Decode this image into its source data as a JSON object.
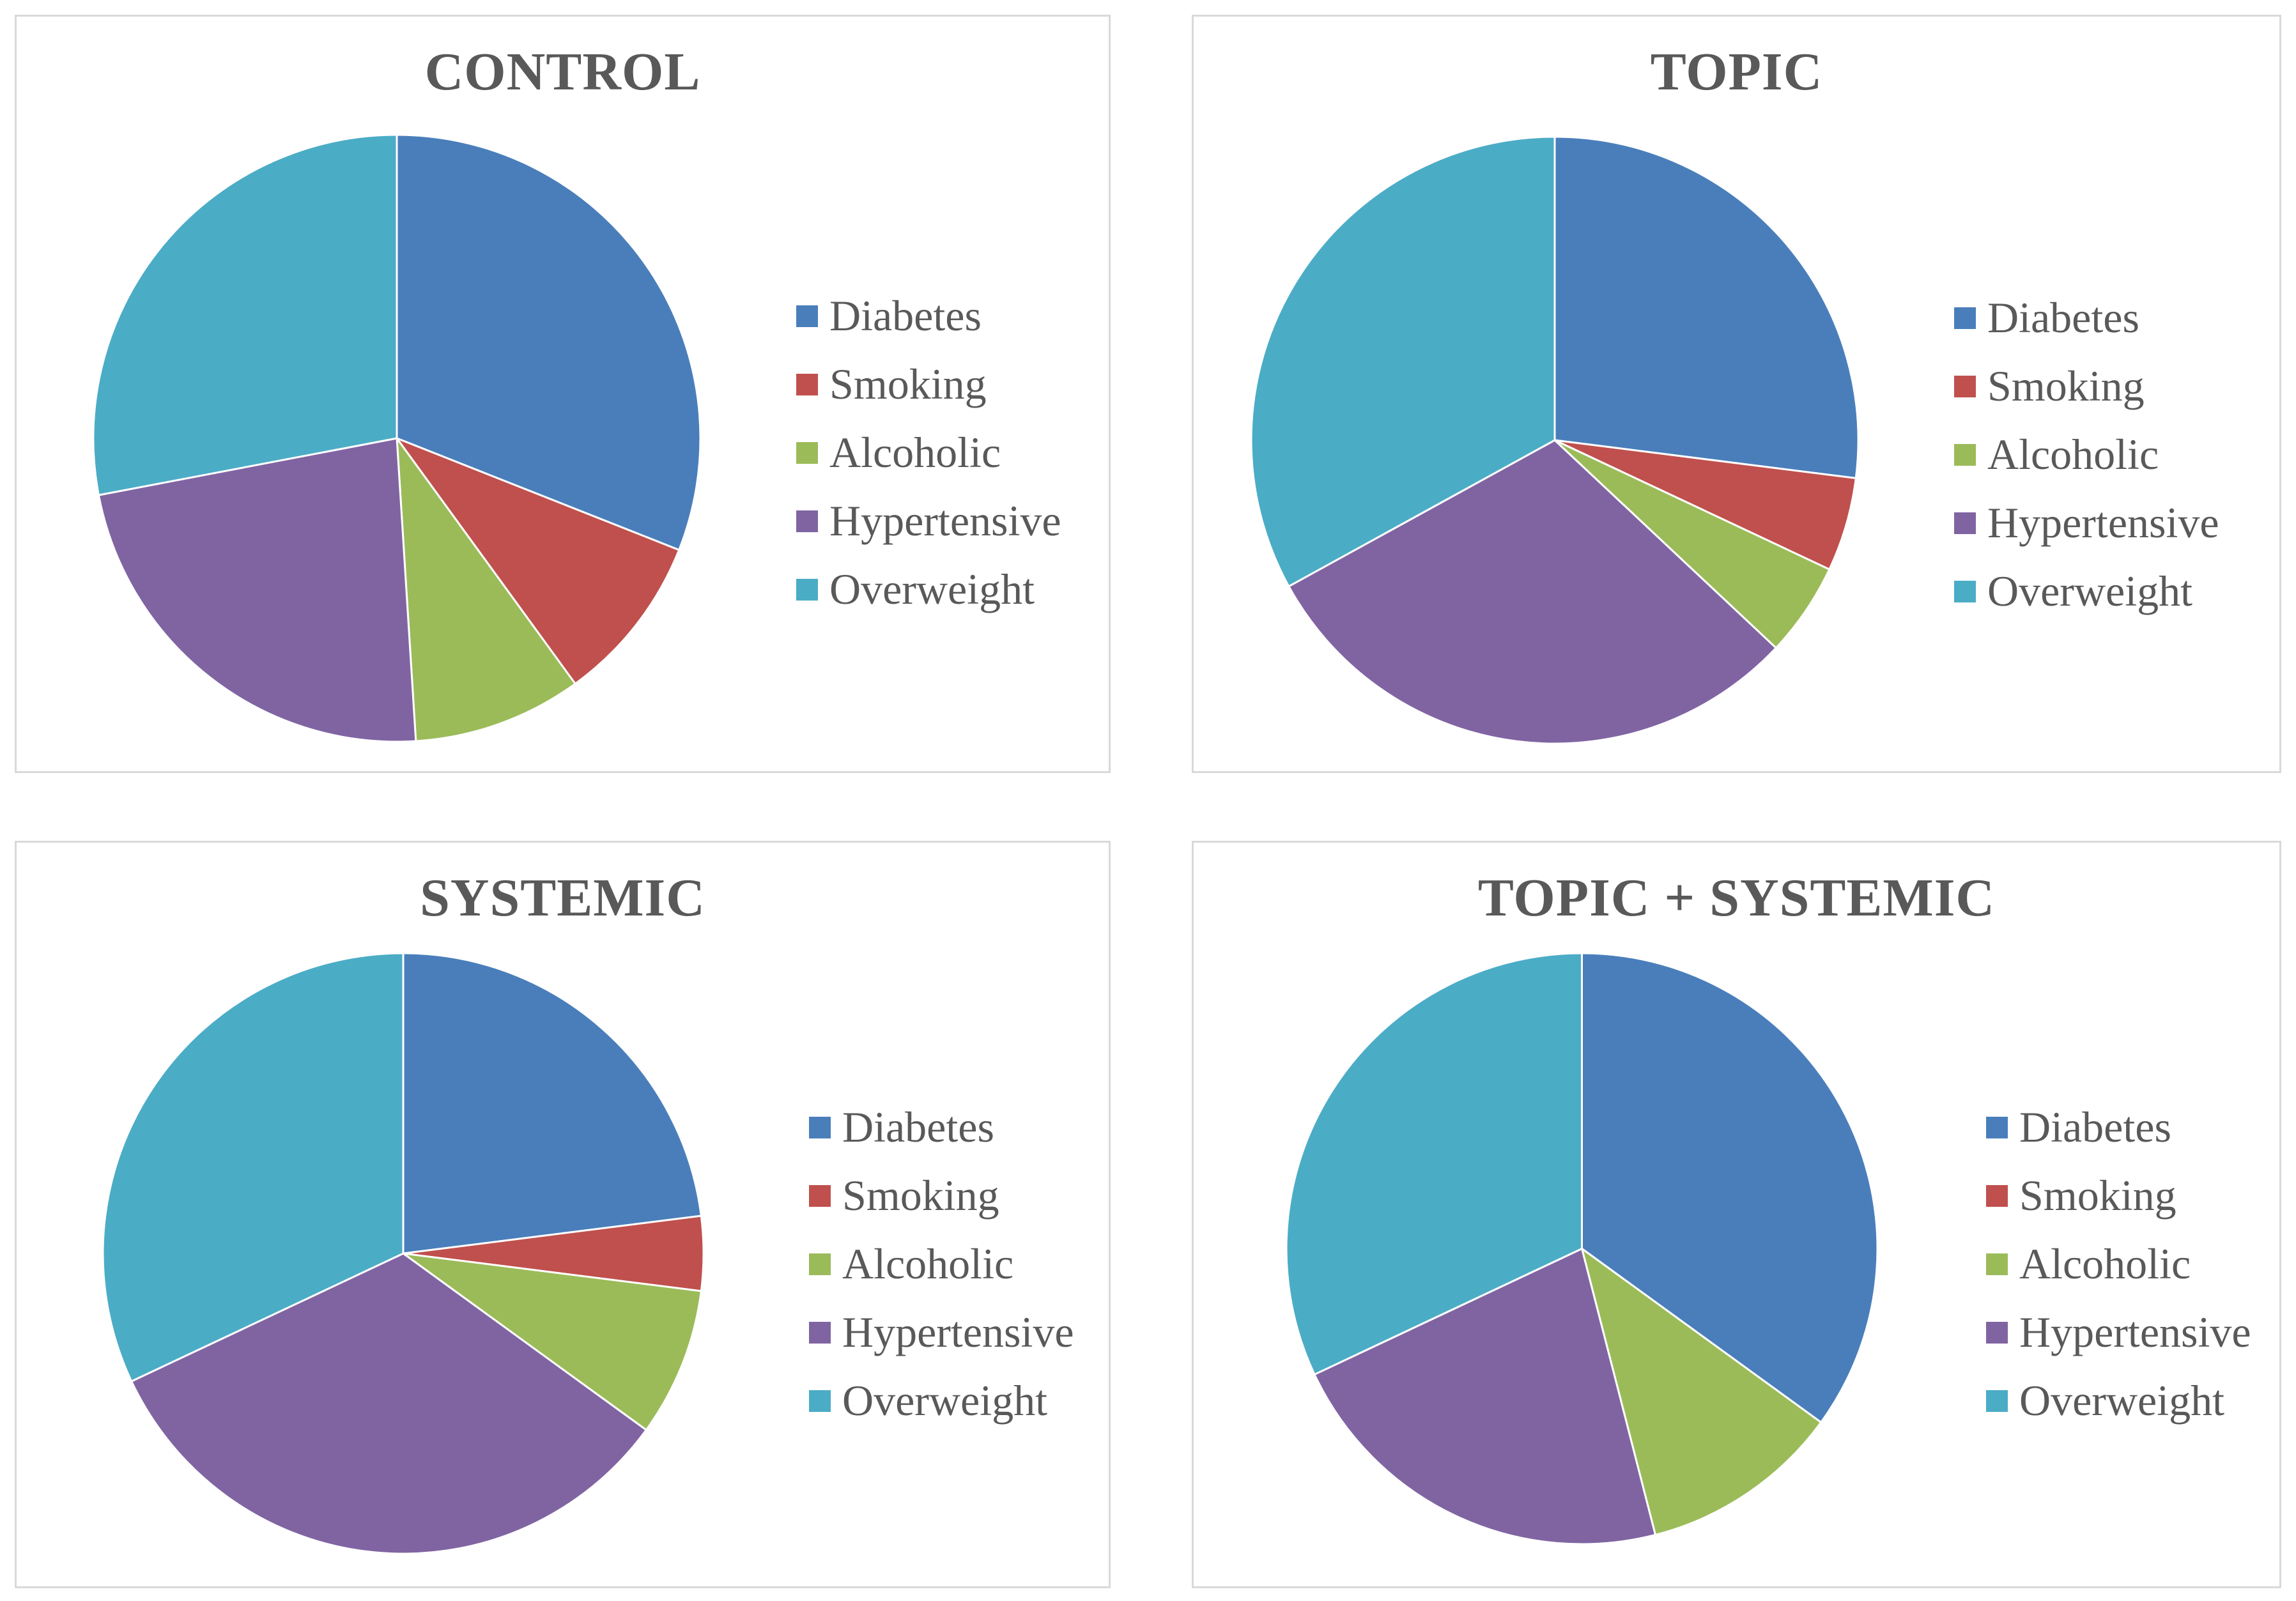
{
  "chart_data": [
    {
      "type": "pie",
      "title": "CONTROL",
      "labels": [
        "Diabetes",
        "Smoking",
        "Alcoholic",
        "Hypertensive",
        "Overweight"
      ],
      "values": [
        31,
        9,
        9,
        23,
        28
      ],
      "colors": [
        "#4a7ebb",
        "#c0504d",
        "#9bbb59",
        "#8064a2",
        "#4bacc6"
      ],
      "legend_position": "right"
    },
    {
      "type": "pie",
      "title": "TOPIC",
      "labels": [
        "Diabetes",
        "Smoking",
        "Alcoholic",
        "Hypertensive",
        "Overweight"
      ],
      "values": [
        27,
        5,
        5,
        30,
        33
      ],
      "colors": [
        "#4a7ebb",
        "#c0504d",
        "#9bbb59",
        "#8064a2",
        "#4bacc6"
      ],
      "legend_position": "right"
    },
    {
      "type": "pie",
      "title": "SYSTEMIC",
      "labels": [
        "Diabetes",
        "Smoking",
        "Alcoholic",
        "Hypertensive",
        "Overweight"
      ],
      "values": [
        23,
        4,
        8,
        33,
        32
      ],
      "colors": [
        "#4a7ebb",
        "#c0504d",
        "#9bbb59",
        "#8064a2",
        "#4bacc6"
      ],
      "legend_position": "right"
    },
    {
      "type": "pie",
      "title": "TOPIC + SYSTEMIC",
      "labels": [
        "Diabetes",
        "Smoking",
        "Alcoholic",
        "Hypertensive",
        "Overweight"
      ],
      "values": [
        35,
        0,
        11,
        22,
        32
      ],
      "colors": [
        "#4a7ebb",
        "#c0504d",
        "#9bbb59",
        "#8064a2",
        "#4bacc6"
      ],
      "legend_position": "right"
    }
  ]
}
